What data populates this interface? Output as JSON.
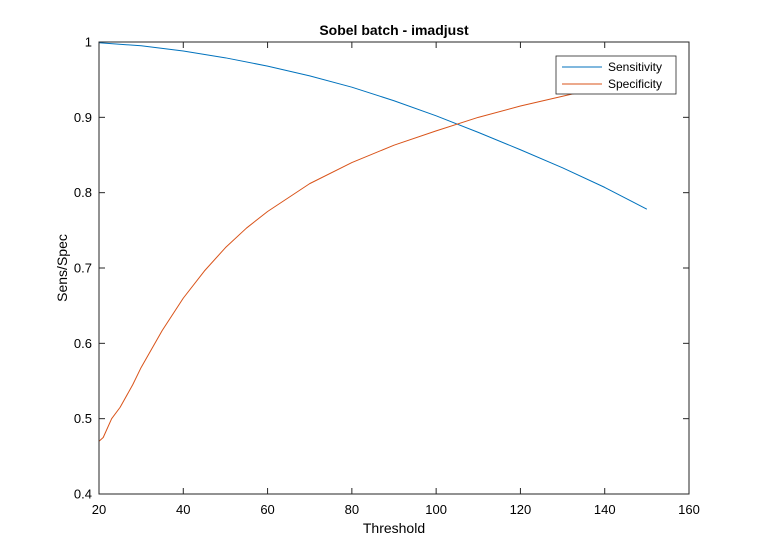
{
  "chart_data": {
    "type": "line",
    "title": "Sobel batch - imadjust",
    "xlabel": "Threshold",
    "ylabel": "Sens/Spec",
    "xlim": [
      20,
      160
    ],
    "ylim": [
      0.4,
      1
    ],
    "xticks": [
      "20",
      "40",
      "60",
      "80",
      "100",
      "120",
      "140",
      "160"
    ],
    "yticks": [
      "0.4",
      "0.5",
      "0.6",
      "0.7",
      "0.8",
      "0.9",
      "1"
    ],
    "grid": false,
    "legend_position": "top-right",
    "series": [
      {
        "name": "Sensitivity",
        "color": "#0072BD",
        "x": [
          20,
          30,
          40,
          50,
          60,
          70,
          80,
          90,
          100,
          110,
          120,
          130,
          140,
          150
        ],
        "y": [
          0.999,
          0.995,
          0.988,
          0.979,
          0.968,
          0.955,
          0.94,
          0.922,
          0.902,
          0.88,
          0.857,
          0.833,
          0.807,
          0.778
        ]
      },
      {
        "name": "Specificity",
        "color": "#D95319",
        "x": [
          20,
          21,
          23,
          25,
          28,
          30,
          35,
          40,
          45,
          50,
          55,
          60,
          70,
          80,
          90,
          100,
          110,
          120,
          130,
          140,
          150
        ],
        "y": [
          0.47,
          0.475,
          0.5,
          0.515,
          0.545,
          0.568,
          0.617,
          0.66,
          0.696,
          0.727,
          0.753,
          0.775,
          0.812,
          0.84,
          0.863,
          0.882,
          0.9,
          0.915,
          0.928,
          0.941,
          0.952
        ]
      }
    ]
  }
}
